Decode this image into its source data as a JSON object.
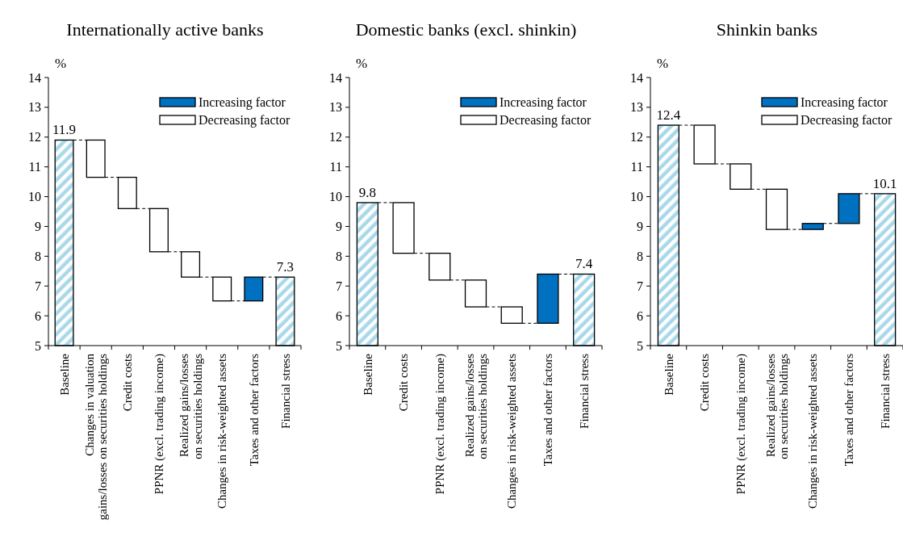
{
  "chart_data": [
    {
      "type": "bar",
      "title": "Internationally active banks",
      "ylabel": "%",
      "categories": [
        "Baseline",
        "Changes in valuation\ngains/losses on securities holdings",
        "Credit costs",
        "PPNR (excl. trading income)",
        "Realized gains/losses\non securities holdings",
        "Changes in risk-weighted assets",
        "Taxes and other factors",
        "Financial stress"
      ],
      "series": [
        {
          "color": "#a9d8ea",
          "values": [
            11.9,
            null,
            null,
            null,
            null,
            null,
            null,
            7.3
          ],
          "value_labels": [
            "11.9",
            null,
            null,
            null,
            null,
            null,
            null,
            "7.3"
          ]
        },
        {
          "name": "Increasing factor",
          "color": "#0070c0",
          "values": [
            null,
            null,
            null,
            null,
            null,
            null,
            0.8,
            null
          ],
          "base": [
            null,
            null,
            null,
            null,
            null,
            null,
            6.5,
            null
          ]
        },
        {
          "name": "Decreasing factor",
          "color": "#ffffff",
          "values": [
            null,
            -1.25,
            -1.05,
            -1.45,
            -0.85,
            -0.8,
            null,
            null
          ],
          "base": [
            null,
            11.9,
            10.65,
            9.6,
            8.15,
            7.3,
            null,
            null
          ]
        }
      ],
      "ylim": [
        5,
        14
      ],
      "yticks": [
        5,
        6,
        7,
        8,
        9,
        10,
        11,
        12,
        13,
        14
      ],
      "legend": "top right"
    },
    {
      "type": "bar",
      "title": "Domestic banks (excl. shinkin)",
      "ylabel": "%",
      "categories": [
        "Baseline",
        "Credit costs",
        "PPNR (excl. trading income)",
        "Realized gains/losses\non securities holdings",
        "Changes in risk-weighted assets",
        "Taxes and other factors",
        "Financial stress"
      ],
      "series": [
        {
          "color": "#a9d8ea",
          "values": [
            9.8,
            null,
            null,
            null,
            null,
            null,
            7.4
          ],
          "value_labels": [
            "9.8",
            null,
            null,
            null,
            null,
            null,
            "7.4"
          ]
        },
        {
          "name": "Increasing factor",
          "color": "#0070c0",
          "values": [
            null,
            null,
            null,
            null,
            null,
            1.65,
            null
          ],
          "base": [
            null,
            null,
            null,
            null,
            null,
            5.75,
            null
          ]
        },
        {
          "name": "Decreasing factor",
          "color": "#ffffff",
          "values": [
            null,
            -1.7,
            -0.9,
            -0.9,
            -0.55,
            null,
            null
          ],
          "base": [
            null,
            9.8,
            8.1,
            7.2,
            6.3,
            null,
            null
          ]
        }
      ],
      "ylim": [
        5,
        14
      ],
      "yticks": [
        5,
        6,
        7,
        8,
        9,
        10,
        11,
        12,
        13,
        14
      ],
      "legend": "top right"
    },
    {
      "type": "bar",
      "title": "Shinkin banks",
      "ylabel": "%",
      "categories": [
        "Baseline",
        "Credit costs",
        "PPNR (excl. trading income)",
        "Realized gains/losses\non securities holdings",
        "Changes in risk-weighted assets",
        "Taxes and other factors",
        "Financial stress"
      ],
      "series": [
        {
          "color": "#a9d8ea",
          "values": [
            12.4,
            null,
            null,
            null,
            null,
            null,
            10.1
          ],
          "value_labels": [
            "12.4",
            null,
            null,
            null,
            null,
            null,
            "10.1"
          ]
        },
        {
          "name": "Increasing factor",
          "color": "#0070c0",
          "values": [
            null,
            null,
            null,
            null,
            0.2,
            1.0,
            null
          ],
          "base": [
            null,
            null,
            null,
            null,
            8.9,
            9.1,
            null
          ]
        },
        {
          "name": "Decreasing factor",
          "color": "#ffffff",
          "values": [
            null,
            -1.3,
            -0.85,
            -1.35,
            null,
            null,
            null
          ],
          "base": [
            null,
            12.4,
            11.1,
            10.25,
            null,
            null,
            null
          ]
        }
      ],
      "ylim": [
        5,
        14
      ],
      "yticks": [
        5,
        6,
        7,
        8,
        9,
        10,
        11,
        12,
        13,
        14
      ],
      "legend": "top right"
    }
  ]
}
